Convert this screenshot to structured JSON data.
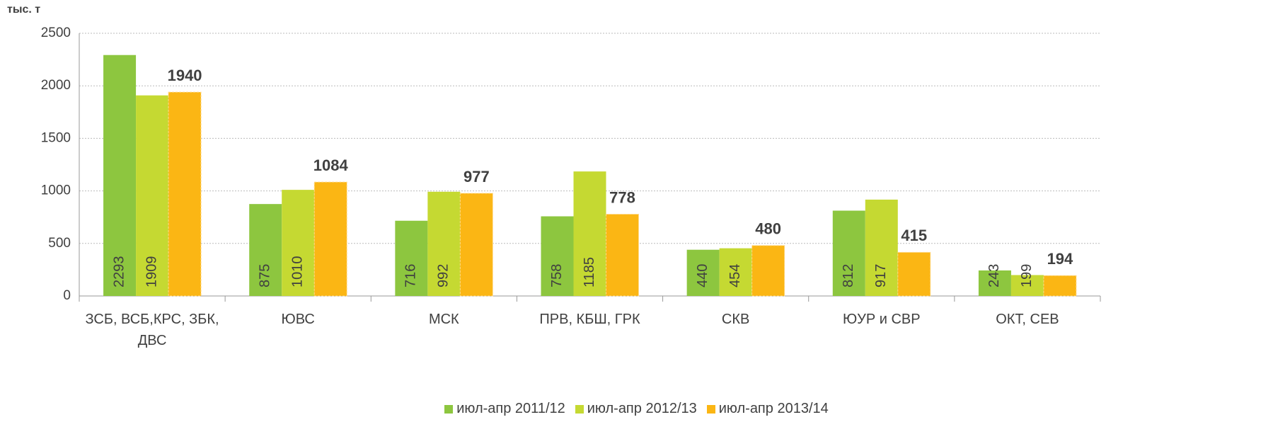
{
  "chart_data": {
    "type": "bar",
    "y_axis_label": "тыс. т",
    "categories": [
      "ЗСБ, ВСБ,КРС, ЗБК, ДВС",
      "ЮВС",
      "МСК",
      "ПРВ, КБШ, ГРК",
      "СКВ",
      "ЮУР и СВР",
      "ОКТ, СЕВ"
    ],
    "series": [
      {
        "name": "июл-апр 2011/12",
        "color": "#8dc63f",
        "values": [
          2293,
          875,
          716,
          758,
          440,
          812,
          243
        ]
      },
      {
        "name": "июл-апр 2012/13",
        "color": "#c5d932",
        "values": [
          1909,
          1010,
          992,
          1185,
          454,
          917,
          199
        ]
      },
      {
        "name": "июл-апр 2013/14",
        "color": "#fbb614",
        "values": [
          1940,
          1084,
          977,
          778,
          480,
          415,
          194
        ]
      }
    ],
    "ylim": [
      0,
      2500
    ],
    "yticks": [
      0,
      500,
      1000,
      1500,
      2000,
      2500
    ],
    "grid": true,
    "legend": "bottom"
  }
}
